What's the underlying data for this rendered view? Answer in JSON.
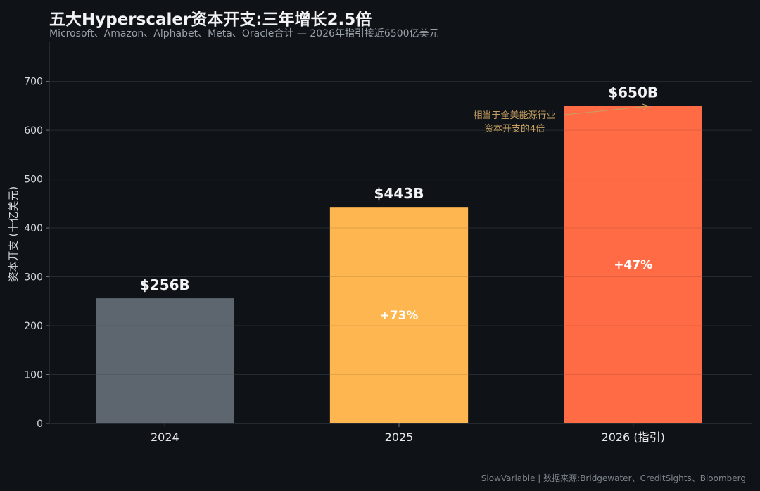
{
  "header": {
    "title": "五大Hyperscaler资本开支:三年增长2.5倍",
    "subtitle": "Microsoft、Amazon、Alphabet、Meta、Oracle合计 — 2026年指引接近6500亿美元"
  },
  "footer": {
    "source": "SlowVariable | 数据来源:Bridgewater、CreditSights、Bloomberg"
  },
  "chart_data": {
    "type": "bar",
    "title": "五大Hyperscaler资本开支:三年增长2.5倍",
    "xlabel": "",
    "ylabel": "资本开支 (十亿美元)",
    "ylim": [
      0,
      780
    ],
    "yticks": [
      0,
      100,
      200,
      300,
      400,
      500,
      600,
      700
    ],
    "grid": true,
    "categories": [
      "2024",
      "2025",
      "2026 (指引)"
    ],
    "values": [
      256,
      443,
      650
    ],
    "value_labels": [
      "$256B",
      "$443B",
      "$650B"
    ],
    "growth_labels": [
      "",
      "+73%",
      "+47%"
    ],
    "colors": [
      "#5d666e",
      "#fdb650",
      "#fe6b45"
    ],
    "annotation": {
      "lines": [
        "相当于全美能源行业",
        "资本开支的4倍"
      ],
      "color": "#c8a060"
    }
  }
}
